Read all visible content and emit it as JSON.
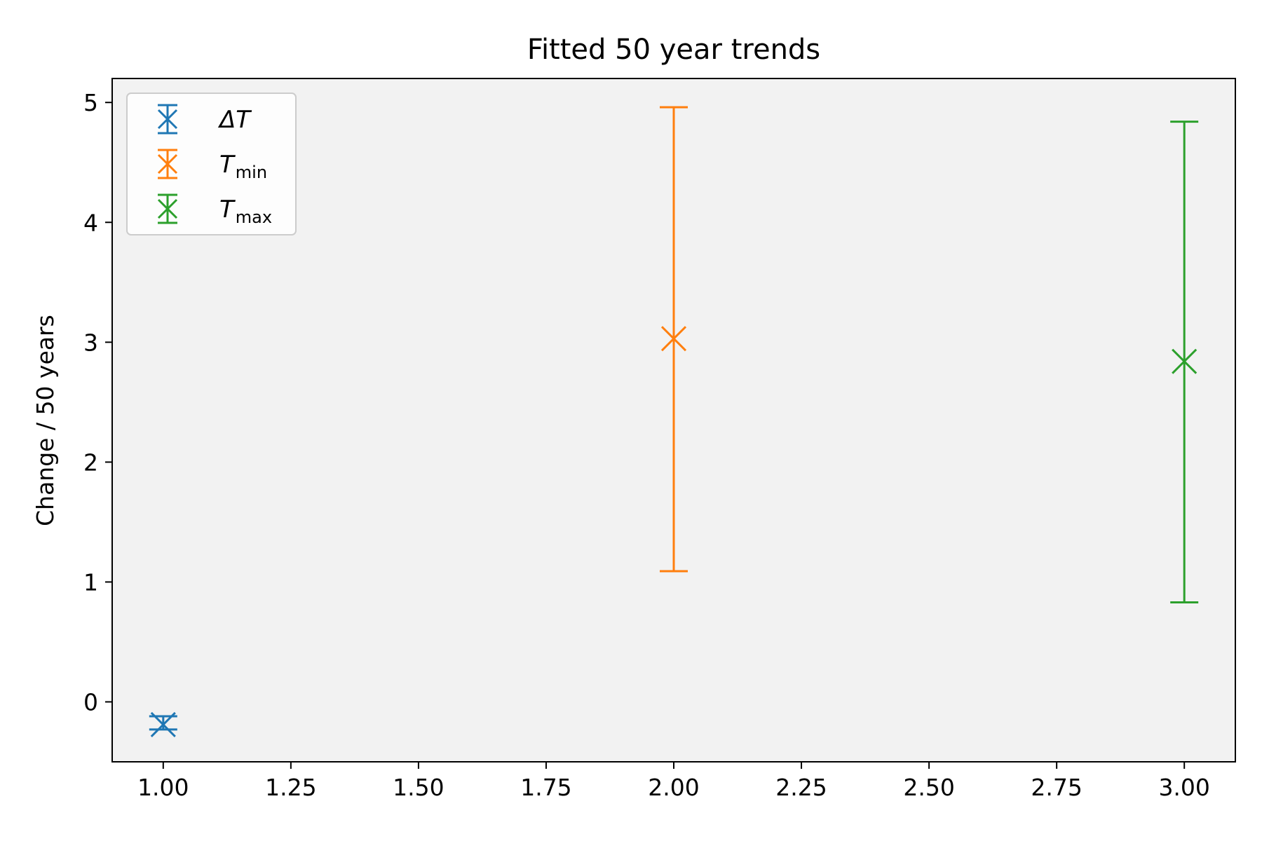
{
  "chart_data": {
    "type": "scatter",
    "title": "Fitted 50 year trends",
    "xlabel": "",
    "ylabel": "Change / 50 years",
    "xlim": [
      0.9,
      3.1
    ],
    "ylim": [
      -0.5,
      5.2
    ],
    "xticks": [
      1.0,
      1.25,
      1.5,
      1.75,
      2.0,
      2.25,
      2.5,
      2.75,
      3.0
    ],
    "xtick_labels": [
      "1.00",
      "1.25",
      "1.50",
      "1.75",
      "2.00",
      "2.25",
      "2.50",
      "2.75",
      "3.00"
    ],
    "yticks": [
      0,
      1,
      2,
      3,
      4,
      5
    ],
    "ytick_labels": [
      "0",
      "1",
      "2",
      "3",
      "4",
      "5"
    ],
    "grid": false,
    "legend_position": "top-left",
    "background_color": "#f2f2f2",
    "series": [
      {
        "name": "ΔT",
        "legend_main": "ΔT",
        "legend_sub": "",
        "color": "#1f77b4",
        "x": 1.0,
        "y": -0.19,
        "yerr_low": -0.23,
        "yerr_high": -0.12
      },
      {
        "name": "Tmin",
        "legend_main": "T",
        "legend_sub": "min",
        "color": "#ff7f0e",
        "x": 2.0,
        "y": 3.03,
        "yerr_low": 1.09,
        "yerr_high": 4.96
      },
      {
        "name": "Tmax",
        "legend_main": "T",
        "legend_sub": "max",
        "color": "#2ca02c",
        "x": 3.0,
        "y": 2.84,
        "yerr_low": 0.83,
        "yerr_high": 4.84
      }
    ]
  }
}
